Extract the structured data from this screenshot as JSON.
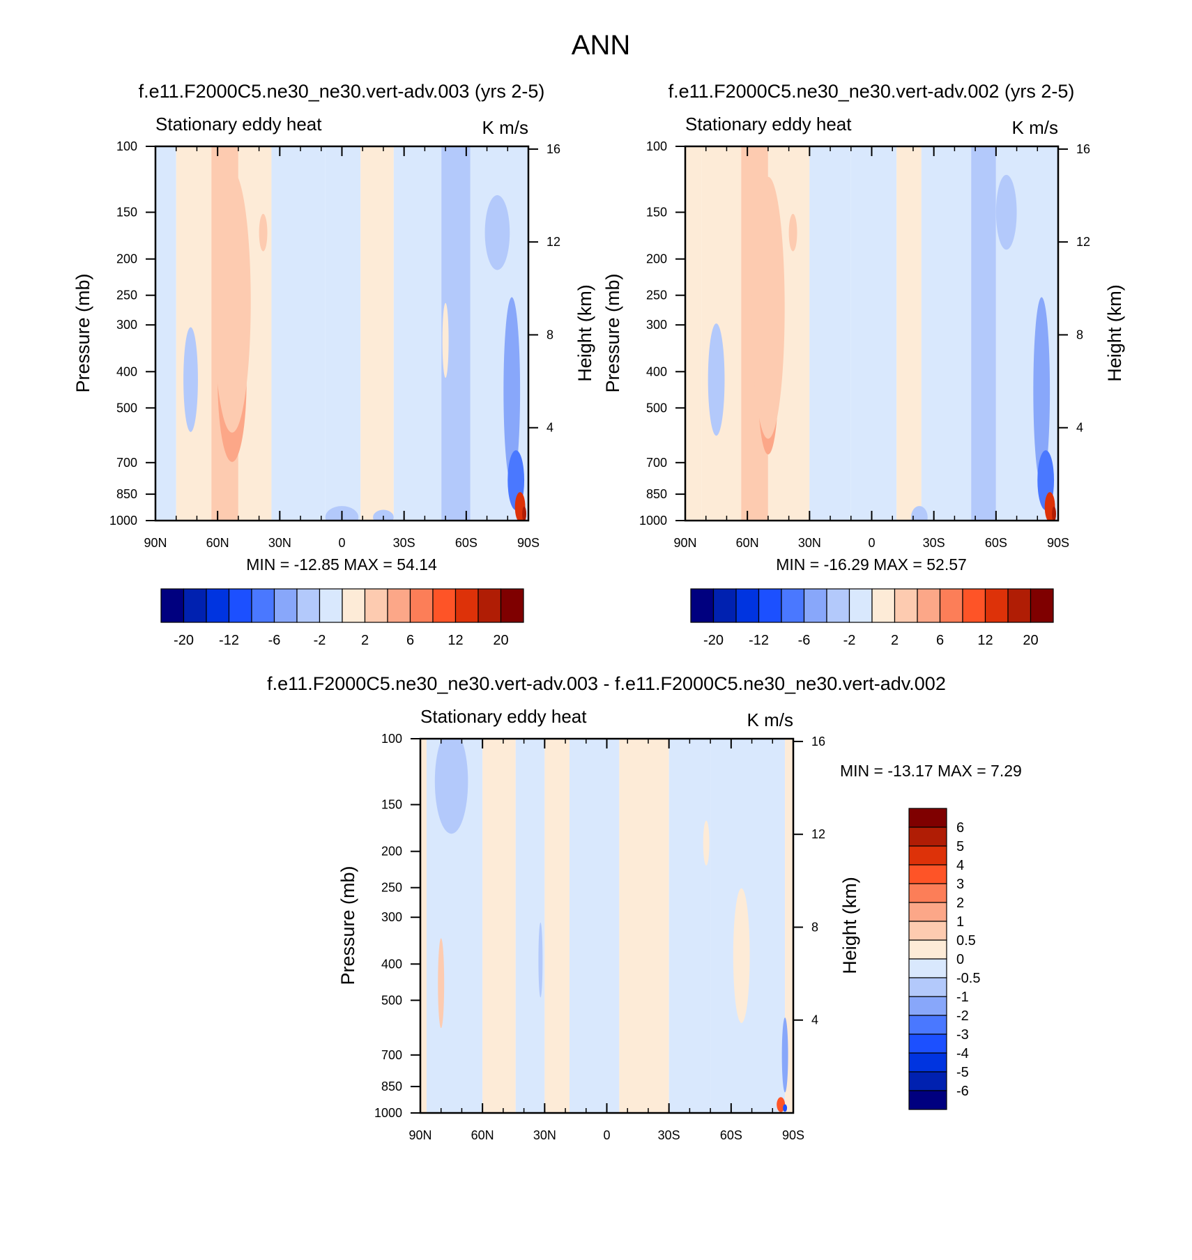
{
  "figure_title": "ANN",
  "colors": {
    "main_scale": [
      "#00007f",
      "#0021b0",
      "#0034e0",
      "#1c50ff",
      "#4a78ff",
      "#88a7fa",
      "#b3c9fb",
      "#d9e8fd",
      "#fdebd7",
      "#fdcbb0",
      "#fca788",
      "#fc7e58",
      "#fe5427",
      "#dd3209",
      "#b01d05",
      "#7f0000"
    ],
    "diff_scale": [
      "#00007f",
      "#0021b0",
      "#0034e0",
      "#1c50ff",
      "#4a78ff",
      "#88a7fa",
      "#b3c9fb",
      "#d9e8fd",
      "#fdebd7",
      "#fdcbb0",
      "#fca788",
      "#fc7e58",
      "#fe5427",
      "#dd3209",
      "#b01d05",
      "#7f0000"
    ]
  },
  "panels": [
    {
      "title": "f.e11.F2000C5.ne30_ne30.vert-adv.003 (yrs 2-5)",
      "variable": "Stationary eddy heat",
      "units": "K m/s",
      "ylabel": "Pressure (mb)",
      "ylabel_right": "Height (km)",
      "min_max": "MIN = -12.85  MAX =  54.14",
      "colorbar_labels": [
        "-20",
        "-12",
        "-6",
        "-2",
        "2",
        "6",
        "12",
        "20"
      ]
    },
    {
      "title": "f.e11.F2000C5.ne30_ne30.vert-adv.002 (yrs 2-5)",
      "variable": "Stationary eddy heat",
      "units": "K m/s",
      "ylabel": "Pressure (mb)",
      "ylabel_right": "Height (km)",
      "min_max": "MIN = -16.29  MAX =  52.57",
      "colorbar_labels": [
        "-20",
        "-12",
        "-6",
        "-2",
        "2",
        "6",
        "12",
        "20"
      ]
    },
    {
      "title": "f.e11.F2000C5.ne30_ne30.vert-adv.003 - f.e11.F2000C5.ne30_ne30.vert-adv.002",
      "variable": "Stationary eddy heat",
      "units": "K m/s",
      "ylabel": "Pressure (mb)",
      "ylabel_right": "Height (km)",
      "min_max": "MIN = -13.17  MAX =   7.29",
      "colorbar_labels": [
        "6",
        "5",
        "4",
        "3",
        "2",
        "1",
        "0.5",
        "0",
        "-0.5",
        "-1",
        "-2",
        "-3",
        "-4",
        "-5",
        "-6"
      ]
    }
  ],
  "chart_data": [
    {
      "type": "heatmap",
      "title": "f.e11.F2000C5.ne30_ne30.vert-adv.003 (yrs 2-5)",
      "variable": "Stationary eddy heat",
      "units": "K m/s",
      "x_ticks": [
        "90N",
        "60N",
        "30N",
        "0",
        "30S",
        "60S",
        "90S"
      ],
      "x_values": [
        90,
        60,
        30,
        0,
        -30,
        -60,
        -90
      ],
      "y_ticks": [
        "100",
        "150",
        "200",
        "250",
        "300",
        "400",
        "500",
        "700",
        "850",
        "1000"
      ],
      "y_values": [
        100,
        150,
        200,
        250,
        300,
        400,
        500,
        700,
        850,
        1000
      ],
      "y_right_ticks": [
        "16",
        "12",
        "8",
        "4"
      ],
      "y_right_values": [
        16,
        12,
        8,
        4
      ],
      "min": -12.85,
      "max": 54.14,
      "contour_levels": [
        -20,
        -16,
        -12,
        -8,
        -6,
        -4,
        -2,
        0,
        2,
        4,
        6,
        8,
        12,
        16,
        20
      ],
      "approx_features": [
        {
          "lat": 53,
          "p_range": [
            300,
            700
          ],
          "level_bin": 10,
          "desc": "positive maximum"
        },
        {
          "lat": 73,
          "p_range": [
            300,
            600
          ],
          "level_bin": 6,
          "desc": "weak negative"
        },
        {
          "lat": -82,
          "p_range": [
            500,
            1000
          ],
          "level_bin": 4,
          "desc": "negative near pole"
        },
        {
          "lat": -86,
          "p_range": [
            850,
            1000
          ],
          "level_bin": 13,
          "desc": "strong positive at surface"
        }
      ]
    },
    {
      "type": "heatmap",
      "title": "f.e11.F2000C5.ne30_ne30.vert-adv.002 (yrs 2-5)",
      "variable": "Stationary eddy heat",
      "units": "K m/s",
      "x_ticks": [
        "90N",
        "60N",
        "30N",
        "0",
        "30S",
        "60S",
        "90S"
      ],
      "x_values": [
        90,
        60,
        30,
        0,
        -30,
        -60,
        -90
      ],
      "y_ticks": [
        "100",
        "150",
        "200",
        "250",
        "300",
        "400",
        "500",
        "700",
        "850",
        "1000"
      ],
      "y_values": [
        100,
        150,
        200,
        250,
        300,
        400,
        500,
        700,
        850,
        1000
      ],
      "y_right_ticks": [
        "16",
        "12",
        "8",
        "4"
      ],
      "y_right_values": [
        16,
        12,
        8,
        4
      ],
      "min": -16.29,
      "max": 52.57,
      "contour_levels": [
        -20,
        -16,
        -12,
        -8,
        -6,
        -4,
        -2,
        0,
        2,
        4,
        6,
        8,
        12,
        16,
        20
      ],
      "approx_features": [
        {
          "lat": 50,
          "p_range": [
            300,
            650
          ],
          "level_bin": 10,
          "desc": "positive maximum"
        },
        {
          "lat": 75,
          "p_range": [
            300,
            650
          ],
          "level_bin": 6,
          "desc": "weak negative"
        },
        {
          "lat": -82,
          "p_range": [
            400,
            1000
          ],
          "level_bin": 4,
          "desc": "negative near pole"
        },
        {
          "lat": -86,
          "p_range": [
            850,
            1000
          ],
          "level_bin": 13,
          "desc": "strong positive at surface"
        }
      ]
    },
    {
      "type": "heatmap",
      "title": "f.e11.F2000C5.ne30_ne30.vert-adv.003 - f.e11.F2000C5.ne30_ne30.vert-adv.002",
      "variable": "Stationary eddy heat",
      "units": "K m/s",
      "x_ticks": [
        "90N",
        "60N",
        "30N",
        "0",
        "30S",
        "60S",
        "90S"
      ],
      "x_values": [
        90,
        60,
        30,
        0,
        -30,
        -60,
        -90
      ],
      "y_ticks": [
        "100",
        "150",
        "200",
        "250",
        "300",
        "400",
        "500",
        "700",
        "850",
        "1000"
      ],
      "y_values": [
        100,
        150,
        200,
        250,
        300,
        400,
        500,
        700,
        850,
        1000
      ],
      "y_right_ticks": [
        "16",
        "12",
        "8",
        "4"
      ],
      "y_right_values": [
        16,
        12,
        8,
        4
      ],
      "min": -13.17,
      "max": 7.29,
      "contour_levels": [
        -6,
        -5,
        -4,
        -3,
        -2,
        -1,
        -0.5,
        0,
        0.5,
        1,
        2,
        3,
        4,
        5,
        6
      ],
      "approx_features": [
        {
          "lat": 75,
          "p_range": [
            100,
            200
          ],
          "level_bin": 6,
          "desc": "negative upper"
        },
        {
          "lat": 80,
          "p_range": [
            350,
            650
          ],
          "level_bin": 9,
          "desc": "positive"
        },
        {
          "lat": -85,
          "p_range": [
            700,
            1000
          ],
          "level_bin": 4,
          "desc": "negative near pole"
        }
      ]
    }
  ]
}
